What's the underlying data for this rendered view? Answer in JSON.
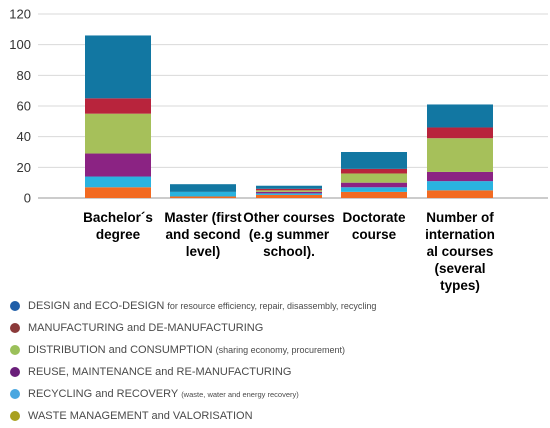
{
  "chart_data": {
    "type": "bar",
    "stacked": true,
    "categories": [
      [
        "Bachelor´s",
        "degree"
      ],
      [
        "Master (first",
        "and second",
        "level)"
      ],
      [
        "Other courses",
        "(e.g summer",
        "school)."
      ],
      [
        "Doctorate",
        "course"
      ],
      [
        "Number of",
        "internation",
        "al courses",
        "(several",
        "types)"
      ]
    ],
    "yticks": [
      "0",
      "20",
      "40",
      "60",
      "80",
      "100",
      "120"
    ],
    "ylim": [
      0,
      120
    ],
    "grid": true,
    "series": [
      {
        "key": "waste",
        "color": "#f26a21",
        "values": [
          7,
          1,
          2,
          4,
          5
        ]
      },
      {
        "key": "recycling",
        "color": "#2ab3e0",
        "values": [
          7,
          3,
          1,
          3,
          6
        ]
      },
      {
        "key": "reuse",
        "color": "#8b2383",
        "values": [
          15,
          0,
          1,
          3,
          6
        ]
      },
      {
        "key": "distribution",
        "color": "#a6c05a",
        "values": [
          26,
          0,
          1,
          6,
          22
        ]
      },
      {
        "key": "manufacturing",
        "color": "#b8243c",
        "values": [
          10,
          0,
          1,
          3,
          7
        ]
      },
      {
        "key": "design",
        "color": "#1277a2",
        "values": [
          41,
          5,
          2,
          11,
          15
        ]
      }
    ]
  },
  "legend": [
    {
      "color": "#1f5ea8",
      "main": "DESIGN and ECO-DESIGN",
      "sub": "for resource efficiency, repair, disassembly, recycling",
      "sub_size": "normal"
    },
    {
      "color": "#8b3a3a",
      "main": "MANUFACTURING and DE-MANUFACTURING",
      "sub": "",
      "sub_size": "normal"
    },
    {
      "color": "#9bc05a",
      "main": "DISTRIBUTION and CONSUMPTION",
      "sub": "(sharing economy, procurement)",
      "sub_size": "normal"
    },
    {
      "color": "#6a1f7a",
      "main": "REUSE, MAINTENANCE and RE-MANUFACTURING",
      "sub": "",
      "sub_size": "normal"
    },
    {
      "color": "#4aa7e0",
      "main": "RECYCLING and RECOVERY",
      "sub": "(waste, water and energy recovery)",
      "sub_size": "small"
    },
    {
      "color": "#a8a020",
      "main": "WASTE MANAGEMENT and VALORISATION",
      "sub": "",
      "sub_size": "normal"
    }
  ]
}
